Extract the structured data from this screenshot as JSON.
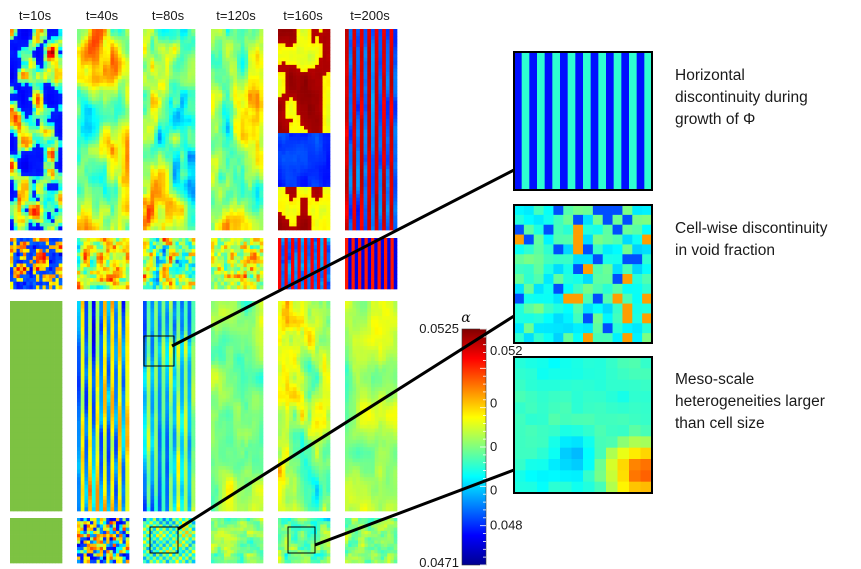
{
  "time_labels": [
    "t=10s",
    "t=40s",
    "t=80s",
    "t=120s",
    "t=160s",
    "t=200s"
  ],
  "annotations": [
    {
      "lines": [
        "Horizontal",
        "discontinuity during",
        "growth of Φ"
      ]
    },
    {
      "lines": [
        "Cell-wise discontinuity",
        "in void fraction"
      ]
    },
    {
      "lines": [
        "Meso-scale",
        "heterogeneities larger",
        "than cell size"
      ]
    }
  ],
  "colorbar": {
    "symbol": "α",
    "max_label": "0.0525",
    "min_label": "0.0471",
    "tick_labels": [
      {
        "value": 0.052,
        "text": "0.052"
      },
      {
        "value": 0.0508,
        "text": "0"
      },
      {
        "value": 0.0498,
        "text": "0"
      },
      {
        "value": 0.0488,
        "text": "0"
      },
      {
        "value": 0.048,
        "text": "0.048"
      }
    ],
    "min": 0.0471,
    "max": 0.0525,
    "colormap": "jet"
  },
  "colors": {
    "uniform_field": "#7dc242",
    "connector": "#000000",
    "zoom_box": "#000000"
  }
}
